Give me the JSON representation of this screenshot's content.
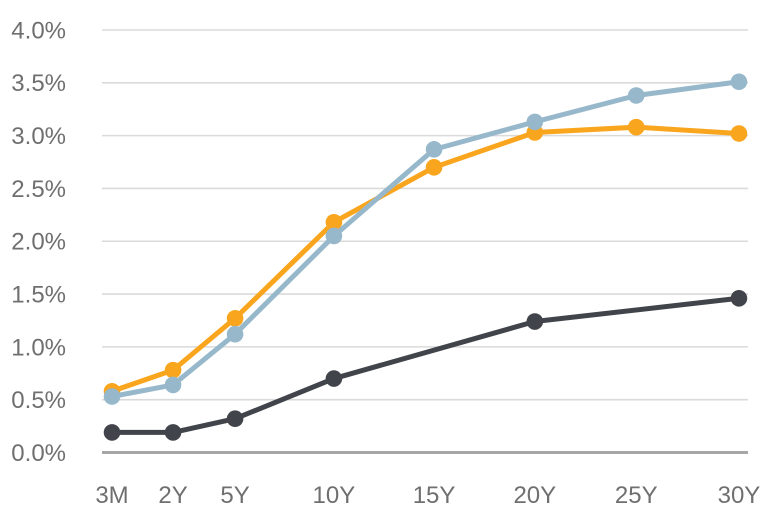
{
  "chart_data": {
    "type": "line",
    "categories": [
      "3M",
      "2Y",
      "5Y",
      "10Y",
      "15Y",
      "20Y",
      "25Y",
      "30Y"
    ],
    "series": [
      {
        "name": "orange-curve",
        "color": "#F9A51D",
        "values": [
          0.58,
          0.78,
          1.27,
          2.18,
          2.7,
          3.03,
          3.08,
          3.02
        ]
      },
      {
        "name": "blue-curve",
        "color": "#97B8CB",
        "values": [
          0.53,
          0.64,
          1.12,
          2.05,
          2.87,
          3.13,
          3.38,
          3.51
        ]
      },
      {
        "name": "dark-curve",
        "color": "#41454B",
        "values": [
          0.19,
          0.19,
          0.32,
          0.7,
          null,
          1.24,
          null,
          1.46
        ]
      }
    ],
    "title": "",
    "xlabel": "",
    "ylabel": "",
    "ylim": [
      0.0,
      4.0
    ],
    "ytick_step": 0.5,
    "ytick_labels": [
      "0.0%",
      "0.5%",
      "1.0%",
      "1.5%",
      "2.0%",
      "2.5%",
      "3.0%",
      "3.5%",
      "4.0%"
    ],
    "grid": true,
    "legend": false
  },
  "colors": {
    "background": "#FFFFFF",
    "gridline": "#DADADA",
    "axis_line": "#A6A6A6",
    "tick_text": "#6F6F6F"
  }
}
